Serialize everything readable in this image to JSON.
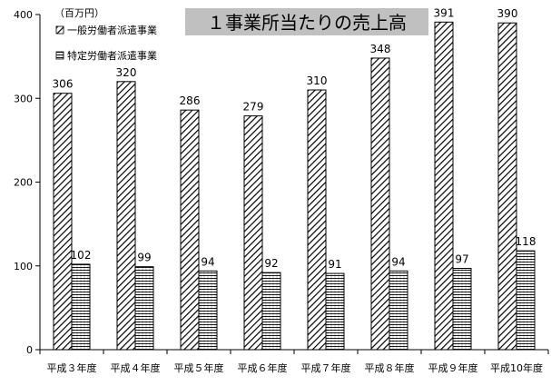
{
  "chart_data": {
    "type": "bar",
    "title": "１事業所当たりの売上高",
    "unit_label": "（百万円）",
    "categories": [
      "平成３年度",
      "平成４年度",
      "平成５年度",
      "平成６年度",
      "平成７年度",
      "平成８年度",
      "平成９年度",
      "平成10年度"
    ],
    "series": [
      {
        "name": "一般労働者派遣事業",
        "pattern": "diagonal-hatch",
        "values": [
          306,
          320,
          286,
          279,
          310,
          348,
          391,
          390
        ]
      },
      {
        "name": "特定労働者派遣事業",
        "pattern": "horizontal-lines",
        "values": [
          102,
          99,
          94,
          92,
          91,
          94,
          97,
          118
        ]
      }
    ],
    "ylim": [
      0,
      400
    ],
    "yticks": [
      0,
      100,
      200,
      300,
      400
    ],
    "grid": false,
    "legend_position": "top-left",
    "colors": {
      "bar_stroke": "#000000",
      "title_bg": "#c0c0c0"
    }
  }
}
